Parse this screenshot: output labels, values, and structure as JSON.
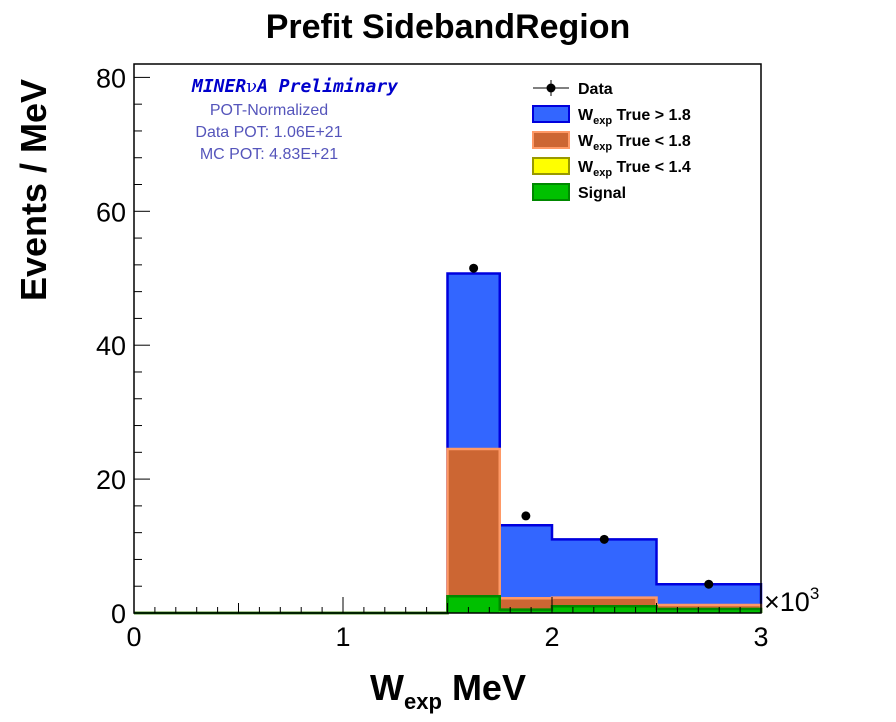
{
  "chart_data": {
    "type": "bar",
    "stacked": true,
    "title": "Prefit SidebandRegion",
    "xlabel": {
      "main": "W",
      "sub": "exp",
      "unit": " MeV"
    },
    "ylabel": "Events / MeV",
    "xlim": [
      0,
      3
    ],
    "ylim": [
      0,
      82
    ],
    "x_multiplier_label": "×10",
    "x_multiplier_exp": "3",
    "x_ticks": [
      0,
      1,
      2,
      3
    ],
    "x_tick_labels": [
      "0",
      "1",
      "2",
      "3"
    ],
    "y_ticks": [
      0,
      20,
      40,
      60,
      80
    ],
    "y_tick_labels": [
      "0",
      "20",
      "40",
      "60",
      "80"
    ],
    "bin_edges": [
      0,
      0.5,
      1.0,
      1.5,
      1.75,
      2.0,
      2.5,
      3.0
    ],
    "series": [
      {
        "name": "Signal",
        "color": "#00c000",
        "edge": "#008800",
        "values": [
          0,
          0,
          0,
          2.5,
          0.5,
          1.0,
          0.6
        ]
      },
      {
        "name": "W<sub>exp</sub> True < 1.4",
        "color": "#ffff00",
        "edge": "#999900",
        "values": [
          0,
          0,
          0,
          0,
          0,
          0,
          0
        ]
      },
      {
        "name": "W<sub>exp</sub> True < 1.8",
        "color": "#cc6633",
        "edge": "#ff9966",
        "values": [
          0,
          0,
          0,
          22.0,
          1.7,
          1.3,
          0.6
        ]
      },
      {
        "name": "W<sub>exp</sub> True > 1.8",
        "color": "#3366ff",
        "edge": "#0000dd",
        "values": [
          0,
          0,
          0,
          26.2,
          10.9,
          8.7,
          3.1
        ]
      }
    ],
    "data_points": {
      "name": "Data",
      "x": [
        1.625,
        1.875,
        2.25,
        2.75
      ],
      "y": [
        51.5,
        14.5,
        11.0,
        4.3
      ]
    },
    "legend": {
      "position": "top-right",
      "entries": [
        {
          "text": "Data",
          "sub": "",
          "rest": "",
          "kind": "marker"
        },
        {
          "text": "W",
          "sub": "exp",
          "rest": " True > 1.8",
          "kind": "box",
          "color": "#3366ff",
          "edge": "#0000dd"
        },
        {
          "text": "W",
          "sub": "exp",
          "rest": " True < 1.8",
          "kind": "box",
          "color": "#cc6633",
          "edge": "#ff9966"
        },
        {
          "text": "W",
          "sub": "exp",
          "rest": " True < 1.4",
          "kind": "box",
          "color": "#ffff00",
          "edge": "#999900"
        },
        {
          "text": "Signal",
          "sub": "",
          "rest": "",
          "kind": "box",
          "color": "#00c000",
          "edge": "#008800"
        }
      ]
    },
    "annotations": {
      "banner_a": "MINER",
      "banner_nu": "ν",
      "banner_b": "A Preliminary",
      "pot_normalized": "POT-Normalized",
      "data_pot": "Data POT: 1.06E+21",
      "mc_pot": "MC POT: 4.83E+21"
    },
    "colors": {
      "banner": "#0000cc",
      "pot_text": "#5555bb"
    }
  }
}
